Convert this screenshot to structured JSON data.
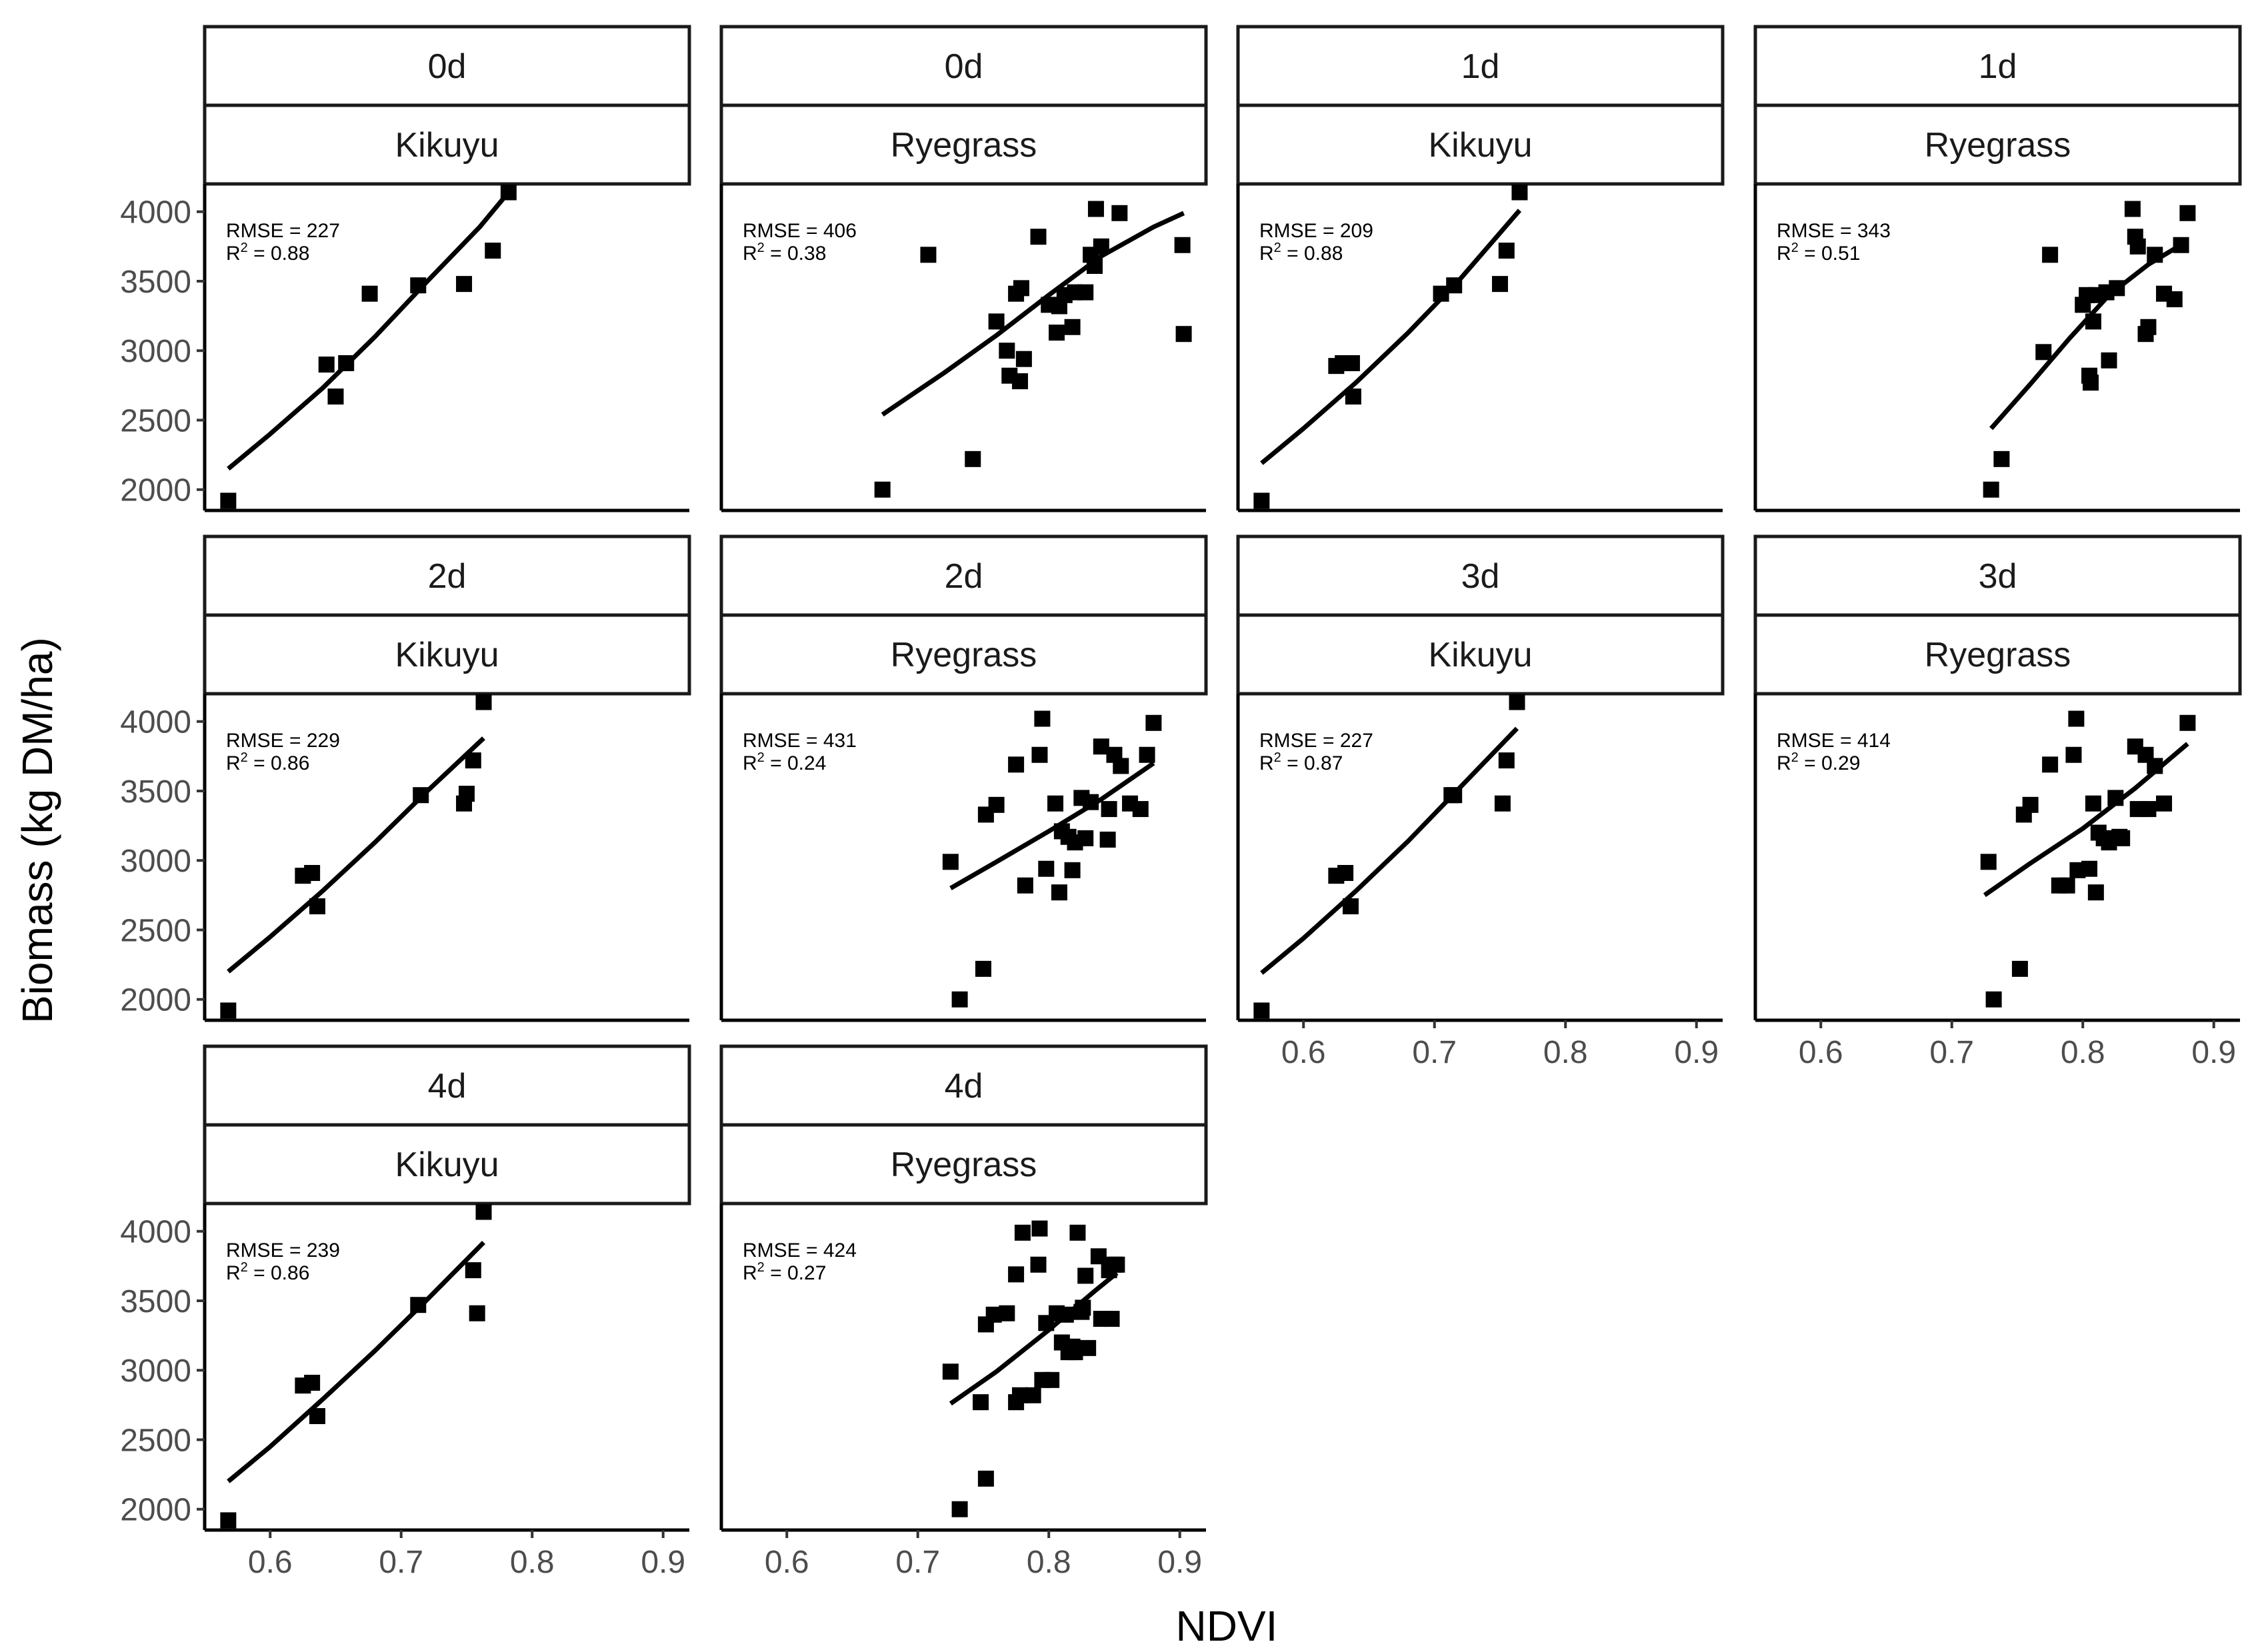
{
  "chart_data": {
    "type": "scatter",
    "xlabel": "NDVI",
    "ylabel": "Biomass (kg DM/ha)",
    "xlim": [
      0.55,
      0.92
    ],
    "ylim": [
      1850,
      4200
    ],
    "x_ticks": [
      0.6,
      0.7,
      0.8,
      0.9
    ],
    "x_tick_labels": [
      "0.6",
      "0.7",
      "0.8",
      "0.9"
    ],
    "y_ticks": [
      2000,
      2500,
      3000,
      3500,
      4000
    ],
    "y_tick_labels": [
      "2000",
      "2500",
      "3000",
      "3500",
      "4000"
    ],
    "rmse_prefix": "RMSE = ",
    "r2_prefix": "R",
    "r2_sup": "2",
    "r2_eq": " = ",
    "panels": [
      {
        "day": "0d",
        "species": "Kikuyu",
        "rmse": "227",
        "r2": "0.88",
        "points": [
          [
            0.568,
            1920
          ],
          [
            0.643,
            2900
          ],
          [
            0.65,
            2670
          ],
          [
            0.658,
            2910
          ],
          [
            0.676,
            3410
          ],
          [
            0.713,
            3470
          ],
          [
            0.748,
            3480
          ],
          [
            0.77,
            3720
          ],
          [
            0.782,
            4140
          ]
        ],
        "fit": [
          [
            0.568,
            2150
          ],
          [
            0.6,
            2400
          ],
          [
            0.64,
            2730
          ],
          [
            0.68,
            3100
          ],
          [
            0.72,
            3500
          ],
          [
            0.76,
            3890
          ],
          [
            0.782,
            4140
          ]
        ]
      },
      {
        "day": "0d",
        "species": "Ryegrass",
        "rmse": "406",
        "r2": "0.38",
        "points": [
          [
            0.673,
            2000
          ],
          [
            0.708,
            3690
          ],
          [
            0.742,
            2220
          ],
          [
            0.76,
            3210
          ],
          [
            0.768,
            3000
          ],
          [
            0.77,
            2820
          ],
          [
            0.775,
            3410
          ],
          [
            0.778,
            2780
          ],
          [
            0.779,
            3450
          ],
          [
            0.781,
            2940
          ],
          [
            0.792,
            3820
          ],
          [
            0.8,
            3330
          ],
          [
            0.806,
            3130
          ],
          [
            0.808,
            3320
          ],
          [
            0.812,
            3400
          ],
          [
            0.818,
            3170
          ],
          [
            0.82,
            3420
          ],
          [
            0.828,
            3420
          ],
          [
            0.832,
            3690
          ],
          [
            0.835,
            3610
          ],
          [
            0.836,
            4020
          ],
          [
            0.84,
            3750
          ],
          [
            0.854,
            3990
          ],
          [
            0.902,
            3760
          ],
          [
            0.903,
            3120
          ]
        ],
        "fit": [
          [
            0.673,
            2540
          ],
          [
            0.72,
            2840
          ],
          [
            0.76,
            3110
          ],
          [
            0.8,
            3400
          ],
          [
            0.84,
            3680
          ],
          [
            0.88,
            3890
          ],
          [
            0.903,
            3990
          ]
        ]
      },
      {
        "day": "1d",
        "species": "Kikuyu",
        "rmse": "209",
        "r2": "0.88",
        "points": [
          [
            0.568,
            1920
          ],
          [
            0.625,
            2890
          ],
          [
            0.63,
            2910
          ],
          [
            0.637,
            2910
          ],
          [
            0.638,
            2670
          ],
          [
            0.705,
            3410
          ],
          [
            0.715,
            3470
          ],
          [
            0.75,
            3480
          ],
          [
            0.755,
            3720
          ],
          [
            0.765,
            4140
          ]
        ],
        "fit": [
          [
            0.568,
            2190
          ],
          [
            0.6,
            2440
          ],
          [
            0.64,
            2770
          ],
          [
            0.68,
            3130
          ],
          [
            0.72,
            3520
          ],
          [
            0.765,
            4010
          ]
        ]
      },
      {
        "day": "1d",
        "species": "Ryegrass",
        "rmse": "343",
        "r2": "0.51",
        "points": [
          [
            0.73,
            2000
          ],
          [
            0.738,
            2220
          ],
          [
            0.77,
            2990
          ],
          [
            0.775,
            3690
          ],
          [
            0.8,
            3330
          ],
          [
            0.803,
            3400
          ],
          [
            0.805,
            2820
          ],
          [
            0.806,
            2770
          ],
          [
            0.808,
            3210
          ],
          [
            0.81,
            3400
          ],
          [
            0.818,
            3420
          ],
          [
            0.82,
            2930
          ],
          [
            0.826,
            3450
          ],
          [
            0.838,
            4020
          ],
          [
            0.84,
            3820
          ],
          [
            0.842,
            3750
          ],
          [
            0.848,
            3120
          ],
          [
            0.85,
            3170
          ],
          [
            0.855,
            3690
          ],
          [
            0.862,
            3410
          ],
          [
            0.87,
            3370
          ],
          [
            0.875,
            3760
          ],
          [
            0.88,
            3990
          ]
        ],
        "fit": [
          [
            0.73,
            2440
          ],
          [
            0.76,
            2760
          ],
          [
            0.79,
            3090
          ],
          [
            0.82,
            3400
          ],
          [
            0.85,
            3620
          ],
          [
            0.88,
            3790
          ]
        ]
      },
      {
        "day": "2d",
        "species": "Kikuyu",
        "rmse": "229",
        "r2": "0.86",
        "points": [
          [
            0.568,
            1920
          ],
          [
            0.625,
            2890
          ],
          [
            0.632,
            2910
          ],
          [
            0.636,
            2670
          ],
          [
            0.715,
            3470
          ],
          [
            0.748,
            3410
          ],
          [
            0.75,
            3480
          ],
          [
            0.755,
            3720
          ],
          [
            0.763,
            4140
          ]
        ],
        "fit": [
          [
            0.568,
            2200
          ],
          [
            0.6,
            2450
          ],
          [
            0.64,
            2780
          ],
          [
            0.68,
            3130
          ],
          [
            0.72,
            3500
          ],
          [
            0.763,
            3880
          ]
        ]
      },
      {
        "day": "2d",
        "species": "Ryegrass",
        "rmse": "431",
        "r2": "0.24",
        "points": [
          [
            0.725,
            2990
          ],
          [
            0.732,
            2000
          ],
          [
            0.75,
            2220
          ],
          [
            0.752,
            3330
          ],
          [
            0.76,
            3400
          ],
          [
            0.775,
            3690
          ],
          [
            0.782,
            2820
          ],
          [
            0.793,
            3760
          ],
          [
            0.795,
            4020
          ],
          [
            0.798,
            2940
          ],
          [
            0.805,
            3410
          ],
          [
            0.808,
            2770
          ],
          [
            0.81,
            3210
          ],
          [
            0.815,
            3170
          ],
          [
            0.818,
            2930
          ],
          [
            0.82,
            3130
          ],
          [
            0.825,
            3450
          ],
          [
            0.828,
            3160
          ],
          [
            0.832,
            3420
          ],
          [
            0.84,
            3820
          ],
          [
            0.845,
            3150
          ],
          [
            0.846,
            3370
          ],
          [
            0.85,
            3760
          ],
          [
            0.855,
            3680
          ],
          [
            0.862,
            3410
          ],
          [
            0.87,
            3370
          ],
          [
            0.875,
            3760
          ],
          [
            0.88,
            3990
          ]
        ],
        "fit": [
          [
            0.725,
            2800
          ],
          [
            0.76,
            2990
          ],
          [
            0.8,
            3210
          ],
          [
            0.84,
            3440
          ],
          [
            0.88,
            3700
          ]
        ]
      },
      {
        "day": "3d",
        "species": "Kikuyu",
        "rmse": "227",
        "r2": "0.87",
        "points": [
          [
            0.568,
            1920
          ],
          [
            0.625,
            2890
          ],
          [
            0.632,
            2910
          ],
          [
            0.636,
            2670
          ],
          [
            0.713,
            3470
          ],
          [
            0.715,
            3470
          ],
          [
            0.752,
            3410
          ],
          [
            0.755,
            3720
          ],
          [
            0.763,
            4140
          ]
        ],
        "fit": [
          [
            0.568,
            2190
          ],
          [
            0.6,
            2440
          ],
          [
            0.64,
            2780
          ],
          [
            0.68,
            3140
          ],
          [
            0.72,
            3530
          ],
          [
            0.763,
            3950
          ]
        ]
      },
      {
        "day": "3d",
        "species": "Ryegrass",
        "rmse": "414",
        "r2": "0.29",
        "points": [
          [
            0.728,
            2990
          ],
          [
            0.732,
            2000
          ],
          [
            0.752,
            2220
          ],
          [
            0.755,
            3330
          ],
          [
            0.76,
            3400
          ],
          [
            0.775,
            3690
          ],
          [
            0.782,
            2820
          ],
          [
            0.788,
            2820
          ],
          [
            0.793,
            3760
          ],
          [
            0.795,
            4020
          ],
          [
            0.796,
            2930
          ],
          [
            0.805,
            2940
          ],
          [
            0.808,
            3410
          ],
          [
            0.81,
            2770
          ],
          [
            0.812,
            3200
          ],
          [
            0.816,
            3160
          ],
          [
            0.82,
            3130
          ],
          [
            0.825,
            3450
          ],
          [
            0.828,
            3170
          ],
          [
            0.83,
            3160
          ],
          [
            0.84,
            3820
          ],
          [
            0.842,
            3370
          ],
          [
            0.848,
            3760
          ],
          [
            0.85,
            3370
          ],
          [
            0.855,
            3680
          ],
          [
            0.862,
            3410
          ],
          [
            0.88,
            3990
          ]
        ],
        "fit": [
          [
            0.725,
            2750
          ],
          [
            0.76,
            2980
          ],
          [
            0.8,
            3230
          ],
          [
            0.84,
            3520
          ],
          [
            0.88,
            3840
          ]
        ]
      },
      {
        "day": "4d",
        "species": "Kikuyu",
        "rmse": "239",
        "r2": "0.86",
        "points": [
          [
            0.568,
            1920
          ],
          [
            0.625,
            2890
          ],
          [
            0.632,
            2910
          ],
          [
            0.636,
            2670
          ],
          [
            0.713,
            3470
          ],
          [
            0.755,
            3720
          ],
          [
            0.758,
            3410
          ],
          [
            0.763,
            4140
          ]
        ],
        "fit": [
          [
            0.568,
            2200
          ],
          [
            0.6,
            2450
          ],
          [
            0.64,
            2790
          ],
          [
            0.68,
            3140
          ],
          [
            0.72,
            3510
          ],
          [
            0.763,
            3920
          ]
        ]
      },
      {
        "day": "4d",
        "species": "Ryegrass",
        "rmse": "424",
        "r2": "0.27",
        "points": [
          [
            0.725,
            2990
          ],
          [
            0.732,
            2000
          ],
          [
            0.748,
            2770
          ],
          [
            0.752,
            2220
          ],
          [
            0.752,
            3330
          ],
          [
            0.758,
            3400
          ],
          [
            0.768,
            3410
          ],
          [
            0.775,
            2770
          ],
          [
            0.775,
            3690
          ],
          [
            0.778,
            2820
          ],
          [
            0.78,
            3990
          ],
          [
            0.788,
            2820
          ],
          [
            0.792,
            3760
          ],
          [
            0.793,
            4020
          ],
          [
            0.795,
            2930
          ],
          [
            0.798,
            3340
          ],
          [
            0.802,
            2930
          ],
          [
            0.806,
            3410
          ],
          [
            0.81,
            3200
          ],
          [
            0.813,
            3400
          ],
          [
            0.815,
            3130
          ],
          [
            0.818,
            3170
          ],
          [
            0.82,
            3130
          ],
          [
            0.822,
            3990
          ],
          [
            0.825,
            3420
          ],
          [
            0.826,
            3450
          ],
          [
            0.828,
            3680
          ],
          [
            0.83,
            3160
          ],
          [
            0.838,
            3820
          ],
          [
            0.84,
            3370
          ],
          [
            0.846,
            3720
          ],
          [
            0.848,
            3370
          ],
          [
            0.85,
            3760
          ],
          [
            0.852,
            3760
          ]
        ],
        "fit": [
          [
            0.725,
            2760
          ],
          [
            0.76,
            2990
          ],
          [
            0.8,
            3290
          ],
          [
            0.835,
            3570
          ],
          [
            0.852,
            3700
          ]
        ]
      }
    ]
  }
}
